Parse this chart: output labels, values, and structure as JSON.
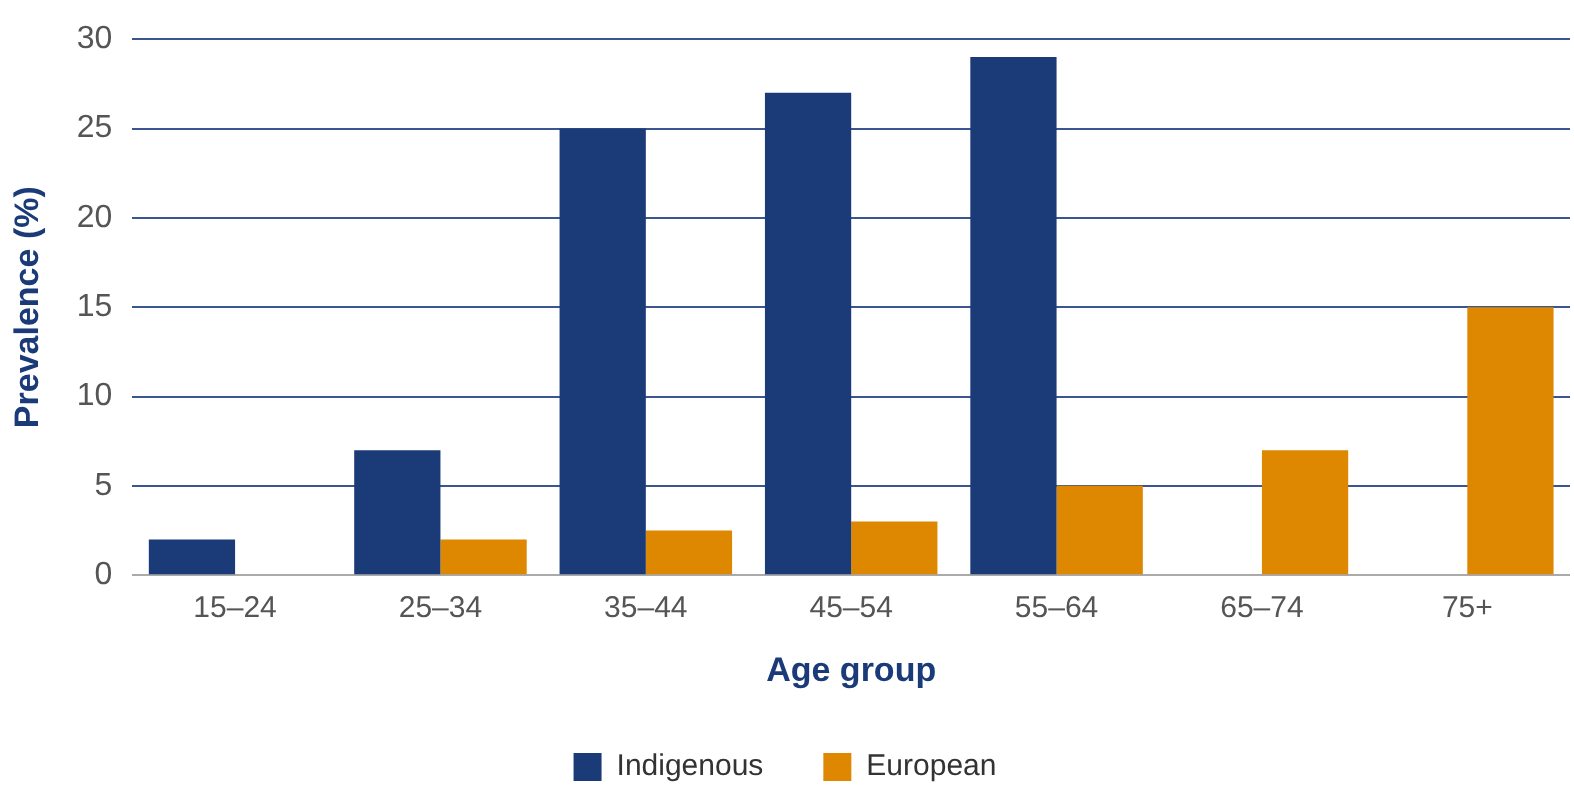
{
  "chart_data": {
    "type": "bar",
    "xlabel": "Age group",
    "ylabel": "Prevalence (%)",
    "categories": [
      "15–24",
      "25–34",
      "35–44",
      "45–54",
      "55–64",
      "65–74",
      "75+"
    ],
    "series": [
      {
        "name": "Indigenous",
        "color": "#1b3a78",
        "values": [
          2,
          7,
          25,
          27,
          29,
          null,
          null
        ]
      },
      {
        "name": "European",
        "color": "#de8700",
        "values": [
          null,
          2,
          2.5,
          3,
          5,
          7,
          15
        ]
      }
    ],
    "ylim": [
      0,
      30
    ],
    "yticks": [
      0,
      5,
      10,
      15,
      20,
      25,
      30
    ],
    "grid": "y",
    "legend": "bottom"
  }
}
